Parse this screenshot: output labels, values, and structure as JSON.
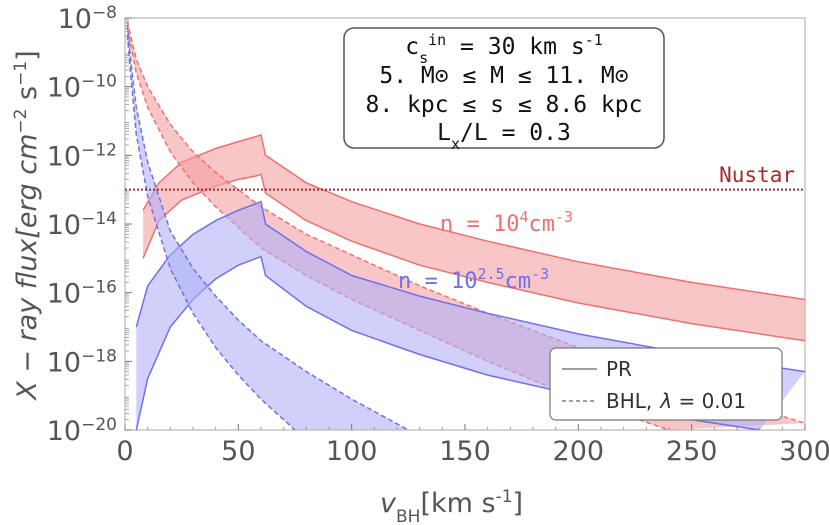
{
  "chart_data": {
    "type": "area",
    "xlabel_main": "v",
    "xlabel_sub": "BH",
    "xlabel_unit": "[km s",
    "xlabel_unit_exp": "-1",
    "xlabel_close": "]",
    "ylabel_text": "X − ray flux[erg cm",
    "ylabel_exp1": "−2",
    "ylabel_mid": " s",
    "ylabel_exp2": "−1",
    "ylabel_close": "]",
    "xlim": [
      0,
      300
    ],
    "ylim_log10": [
      -20,
      -8
    ],
    "xticks": [
      {
        "v": 0,
        "label": "0"
      },
      {
        "v": 50,
        "label": "50"
      },
      {
        "v": 100,
        "label": "100"
      },
      {
        "v": 150,
        "label": "150"
      },
      {
        "v": 200,
        "label": "200"
      },
      {
        "v": 250,
        "label": "250"
      },
      {
        "v": 300,
        "label": "300"
      }
    ],
    "yticks": [
      {
        "e": -20,
        "base": "10",
        "exp": "−20"
      },
      {
        "e": -18,
        "base": "10",
        "exp": "−18"
      },
      {
        "e": -16,
        "base": "10",
        "exp": "−16"
      },
      {
        "e": -14,
        "base": "10",
        "exp": "−14"
      },
      {
        "e": -12,
        "base": "10",
        "exp": "−12"
      },
      {
        "e": -10,
        "base": "10",
        "exp": "−10"
      },
      {
        "e": -8,
        "base": "10",
        "exp": "−8"
      }
    ],
    "nustar": {
      "label": "Nustar",
      "log10_flux": -13.0,
      "color": "#a52a2a"
    },
    "info_box": {
      "line1_a": "c",
      "line1_sub": "s",
      "line1_sup": "in",
      "line1_b": " = 30 km s",
      "line1_exp": "-1",
      "line2": "5. M⊙ ≤ M ≤ 11. M⊙",
      "line3": "8. kpc ≤ s ≤ 8.6 kpc",
      "line4_a": "L",
      "line4_sub": "x",
      "line4_b": "/L = 0.3"
    },
    "legend": {
      "pr_label": "PR",
      "bhl_label": "BHL,",
      "bhl_lambda": "λ",
      "bhl_value": " = 0.01"
    },
    "bands": [
      {
        "label_a": "n = 10",
        "label_exp": "4",
        "label_b": "cm",
        "label_exp2": "-3",
        "color": "#f07070",
        "fill": "#f4a0a0",
        "pr_upper": [
          [
            8,
            -13.6
          ],
          [
            15,
            -12.8
          ],
          [
            25,
            -12.2
          ],
          [
            40,
            -11.8
          ],
          [
            50,
            -11.6
          ],
          [
            58,
            -11.45
          ],
          [
            60,
            -11.4
          ],
          [
            62,
            -12.0
          ],
          [
            80,
            -12.8
          ],
          [
            100,
            -13.35
          ],
          [
            130,
            -14.0
          ],
          [
            160,
            -14.5
          ],
          [
            200,
            -15.1
          ],
          [
            250,
            -15.7
          ],
          [
            300,
            -16.2
          ]
        ],
        "pr_lower": [
          [
            8,
            -15.0
          ],
          [
            15,
            -13.9
          ],
          [
            25,
            -13.3
          ],
          [
            40,
            -12.9
          ],
          [
            50,
            -12.7
          ],
          [
            58,
            -12.6
          ],
          [
            60,
            -12.55
          ],
          [
            62,
            -13.1
          ],
          [
            80,
            -13.9
          ],
          [
            100,
            -14.5
          ],
          [
            130,
            -15.2
          ],
          [
            160,
            -15.7
          ],
          [
            200,
            -16.3
          ],
          [
            250,
            -16.9
          ],
          [
            300,
            -17.4
          ]
        ],
        "bhl_upper": [
          [
            1,
            -8.1
          ],
          [
            5,
            -9.2
          ],
          [
            10,
            -10.0
          ],
          [
            20,
            -11.1
          ],
          [
            30,
            -11.9
          ],
          [
            40,
            -12.5
          ],
          [
            50,
            -13.0
          ],
          [
            60,
            -13.5
          ],
          [
            80,
            -14.3
          ],
          [
            100,
            -14.9
          ],
          [
            130,
            -15.8
          ],
          [
            160,
            -16.6
          ],
          [
            200,
            -17.6
          ],
          [
            250,
            -18.8
          ],
          [
            300,
            -19.8
          ]
        ],
        "bhl_lower": [
          [
            1,
            -8.3
          ],
          [
            5,
            -9.6
          ],
          [
            10,
            -10.6
          ],
          [
            20,
            -11.9
          ],
          [
            30,
            -12.8
          ],
          [
            40,
            -13.5
          ],
          [
            50,
            -14.1
          ],
          [
            60,
            -14.7
          ],
          [
            80,
            -15.5
          ],
          [
            100,
            -16.2
          ],
          [
            130,
            -17.1
          ],
          [
            160,
            -18.0
          ],
          [
            200,
            -19.1
          ],
          [
            240,
            -20.0
          ]
        ]
      },
      {
        "label_a": "n = 10",
        "label_exp": "2.5",
        "label_b": "cm",
        "label_exp2": "-3",
        "color": "#6f6ff0",
        "fill": "#b0b0f6",
        "pr_upper": [
          [
            5,
            -17.0
          ],
          [
            10,
            -15.8
          ],
          [
            20,
            -14.9
          ],
          [
            30,
            -14.3
          ],
          [
            40,
            -13.9
          ],
          [
            50,
            -13.6
          ],
          [
            58,
            -13.4
          ],
          [
            60,
            -13.35
          ],
          [
            62,
            -14.0
          ],
          [
            80,
            -14.8
          ],
          [
            100,
            -15.5
          ],
          [
            130,
            -16.1
          ],
          [
            160,
            -16.6
          ],
          [
            200,
            -17.2
          ],
          [
            250,
            -17.8
          ],
          [
            300,
            -18.3
          ]
        ],
        "pr_lower": [
          [
            5,
            -20.0
          ],
          [
            10,
            -18.5
          ],
          [
            20,
            -17.0
          ],
          [
            30,
            -16.2
          ],
          [
            40,
            -15.6
          ],
          [
            50,
            -15.2
          ],
          [
            58,
            -15.0
          ],
          [
            60,
            -14.95
          ],
          [
            62,
            -15.5
          ],
          [
            80,
            -16.4
          ],
          [
            100,
            -17.1
          ],
          [
            130,
            -17.8
          ],
          [
            160,
            -18.4
          ],
          [
            200,
            -19.0
          ],
          [
            250,
            -19.7
          ],
          [
            280,
            -20.0
          ]
        ],
        "bhl_upper": [
          [
            1,
            -8.2
          ],
          [
            3,
            -9.5
          ],
          [
            5,
            -10.6
          ],
          [
            10,
            -12.2
          ],
          [
            20,
            -14.2
          ],
          [
            30,
            -15.3
          ],
          [
            40,
            -16.1
          ],
          [
            50,
            -16.8
          ],
          [
            60,
            -17.4
          ],
          [
            80,
            -18.3
          ],
          [
            100,
            -19.1
          ],
          [
            125,
            -20.0
          ]
        ],
        "bhl_lower": [
          [
            1,
            -8.5
          ],
          [
            3,
            -10.0
          ],
          [
            5,
            -11.4
          ],
          [
            10,
            -13.2
          ],
          [
            20,
            -15.3
          ],
          [
            30,
            -16.6
          ],
          [
            40,
            -17.6
          ],
          [
            50,
            -18.4
          ],
          [
            60,
            -19.1
          ],
          [
            75,
            -20.0
          ]
        ]
      }
    ]
  }
}
